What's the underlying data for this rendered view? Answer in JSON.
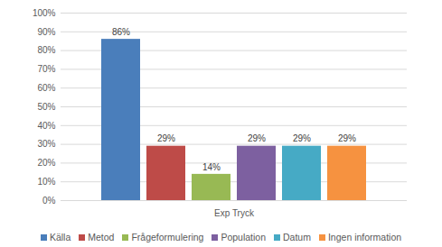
{
  "chart_data": {
    "type": "bar",
    "categories": [
      "Exp Tryck"
    ],
    "series": [
      {
        "name": "Källa",
        "color": "#4a7ebb",
        "values": [
          86
        ],
        "value_labels": [
          "86%"
        ]
      },
      {
        "name": "Metod",
        "color": "#be4b48",
        "values": [
          29
        ],
        "value_labels": [
          "29%"
        ]
      },
      {
        "name": "Frågeformulering",
        "color": "#98b954",
        "values": [
          14
        ],
        "value_labels": [
          "14%"
        ]
      },
      {
        "name": "Population",
        "color": "#7d60a0",
        "values": [
          29
        ],
        "value_labels": [
          "29%"
        ]
      },
      {
        "name": "Datum",
        "color": "#46aac5",
        "values": [
          29
        ],
        "value_labels": [
          "29%"
        ]
      },
      {
        "name": "Ingen information",
        "color": "#f69240",
        "values": [
          29
        ],
        "value_labels": [
          "29%"
        ]
      }
    ],
    "ylim": [
      0,
      100
    ],
    "yticks": [
      {
        "value": 0,
        "label": "0%"
      },
      {
        "value": 10,
        "label": "10%"
      },
      {
        "value": 20,
        "label": "20%"
      },
      {
        "value": 30,
        "label": "30%"
      },
      {
        "value": 40,
        "label": "40%"
      },
      {
        "value": 50,
        "label": "50%"
      },
      {
        "value": 60,
        "label": "60%"
      },
      {
        "value": 70,
        "label": "70%"
      },
      {
        "value": 80,
        "label": "80%"
      },
      {
        "value": 90,
        "label": "90%"
      },
      {
        "value": 100,
        "label": "100%"
      }
    ],
    "grid": true,
    "data_labels": true,
    "legend": "bottom"
  }
}
